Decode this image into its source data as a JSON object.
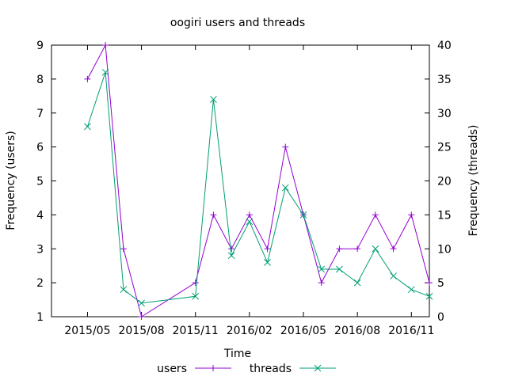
{
  "chart_data": {
    "type": "line",
    "title": "oogiri users and threads",
    "xlabel": "Time",
    "ylabel_left": "Frequency (users)",
    "ylabel_right": "Frequency (threads)",
    "x_ticks": [
      "2015/05",
      "2015/08",
      "2015/11",
      "2016/02",
      "2016/05",
      "2016/08",
      "2016/11"
    ],
    "ylim_left": [
      1,
      9
    ],
    "yticks_left": [
      "1",
      "2",
      "3",
      "4",
      "5",
      "6",
      "7",
      "8",
      "9"
    ],
    "ylim_right": [
      0,
      40
    ],
    "yticks_right": [
      "0",
      "5",
      "10",
      "15",
      "20",
      "25",
      "30",
      "35",
      "40"
    ],
    "grid": false,
    "legend_position": "bottom",
    "series": [
      {
        "name": "users",
        "axis": "left",
        "color": "#9400d3",
        "marker": "plus",
        "x": [
          "2015/05",
          "2015/06",
          "2015/07",
          "2015/08",
          "2015/11",
          "2015/12",
          "2016/01",
          "2016/02",
          "2016/03",
          "2016/04",
          "2016/05",
          "2016/06",
          "2016/07",
          "2016/08",
          "2016/09",
          "2016/10",
          "2016/11",
          "2016/12"
        ],
        "values": [
          8,
          9,
          3,
          1,
          2,
          4,
          3,
          4,
          3,
          6,
          4,
          2,
          3,
          3,
          4,
          3,
          4,
          2
        ]
      },
      {
        "name": "threads",
        "axis": "right",
        "color": "#009e73",
        "marker": "cross",
        "x": [
          "2015/05",
          "2015/06",
          "2015/07",
          "2015/08",
          "2015/11",
          "2015/12",
          "2016/01",
          "2016/02",
          "2016/03",
          "2016/04",
          "2016/05",
          "2016/06",
          "2016/07",
          "2016/08",
          "2016/09",
          "2016/10",
          "2016/11",
          "2016/12"
        ],
        "values": [
          28,
          36,
          4,
          2,
          3,
          32,
          9,
          14,
          8,
          19,
          15,
          7,
          7,
          5,
          10,
          6,
          4,
          3
        ]
      }
    ]
  }
}
